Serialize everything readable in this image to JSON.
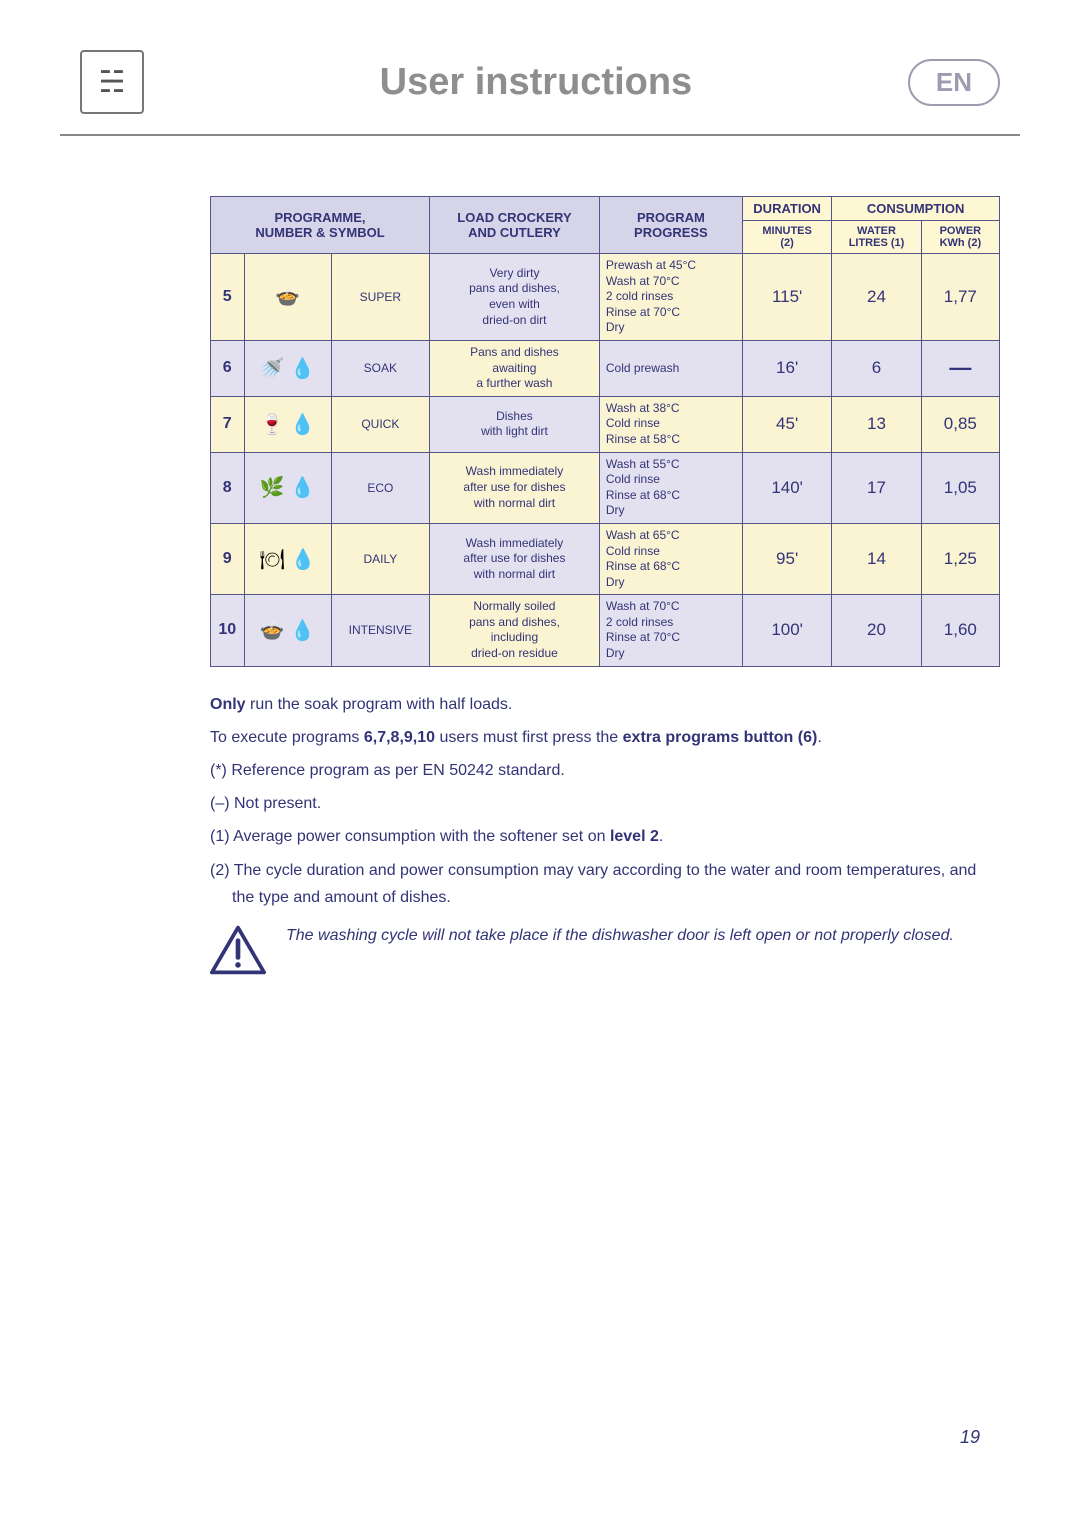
{
  "header": {
    "title": "User instructions",
    "lang_badge": "EN"
  },
  "table": {
    "headers": {
      "programme": "PROGRAMME,\nNUMBER & SYMBOL",
      "load": "LOAD CROCKERY\nAND CUTLERY",
      "progress": "PROGRAM\nPROGRESS",
      "duration": "DURATION",
      "minutes": "MINUTES\n(2)",
      "consumption": "CONSUMPTION",
      "water": "WATER\nLITRES (1)",
      "power": "POWER\nKWh (2)"
    },
    "rows": [
      {
        "idx": "5",
        "symbols": "🍲",
        "name": "SUPER",
        "load": "Very dirty\npans and dishes,\neven with\ndried-on dirt",
        "progress": "Prewash at 45°C\nWash at 70°C\n2 cold rinses\nRinse at 70°C\nDry",
        "minutes": "115'",
        "water": "24",
        "power": "1,77",
        "scheme": "cream"
      },
      {
        "idx": "6",
        "symbols": "🚿 💧",
        "name": "SOAK",
        "load": "Pans and dishes\nawaiting\na further wash",
        "progress": "Cold prewash",
        "minutes": "16'",
        "water": "6",
        "power": "—",
        "scheme": "blue"
      },
      {
        "idx": "7",
        "symbols": "🍷 💧",
        "name": "QUICK",
        "load": "Dishes\nwith light dirt",
        "progress": "Wash at 38°C\nCold rinse\nRinse at 58°C",
        "minutes": "45'",
        "water": "13",
        "power": "0,85",
        "scheme": "cream"
      },
      {
        "idx": "8",
        "symbols": "🌿 💧",
        "name": "ECO",
        "load": "Wash immediately\nafter use for dishes\nwith normal dirt",
        "progress": "Wash at 55°C\nCold rinse\nRinse at 68°C\nDry",
        "minutes": "140'",
        "water": "17",
        "power": "1,05",
        "scheme": "blue"
      },
      {
        "idx": "9",
        "symbols": "🍽 💧",
        "name": "DAILY",
        "load": "Wash immediately\nafter use for dishes\nwith normal dirt",
        "progress": "Wash at 65°C\nCold rinse\nRinse at 68°C\nDry",
        "minutes": "95'",
        "water": "14",
        "power": "1,25",
        "scheme": "cream"
      },
      {
        "idx": "10",
        "symbols": "🍲 💧",
        "name": "INTENSIVE",
        "load": "Normally soiled\npans and dishes,\nincluding\ndried-on residue",
        "progress": "Wash at 70°C\n2 cold rinses\nRinse at 70°C\nDry",
        "minutes": "100'",
        "water": "20",
        "power": "1,60",
        "scheme": "blue"
      }
    ]
  },
  "notes": {
    "n1_pre": "Only",
    "n1_post": " run the soak program with half loads.",
    "n2_pre": "To execute programs ",
    "n2_nums": "6,7,8,9,10",
    "n2_mid": " users must first press the ",
    "n2_btn": "extra programs button (6)",
    "n2_end": ".",
    "n3": "(*) Reference program as per EN 50242 standard.",
    "n4": "(–) Not present.",
    "n5_pre": "(1) Average power consumption with the softener set on ",
    "n5_lvl": "level 2",
    "n5_end": ".",
    "n6": "(2) The cycle duration and power consumption may vary according to the water and room temperatures, and the type and amount of dishes.",
    "warn": "The washing cycle will not take place if the dishwasher door is left open or not properly closed."
  },
  "page_number": "19",
  "colors": {
    "header_blue": "#d6d4e8",
    "header_yellow": "#fef7d3",
    "row_cream": "#fbf4d2",
    "row_blue": "#e3e1f0",
    "text": "#333377"
  }
}
